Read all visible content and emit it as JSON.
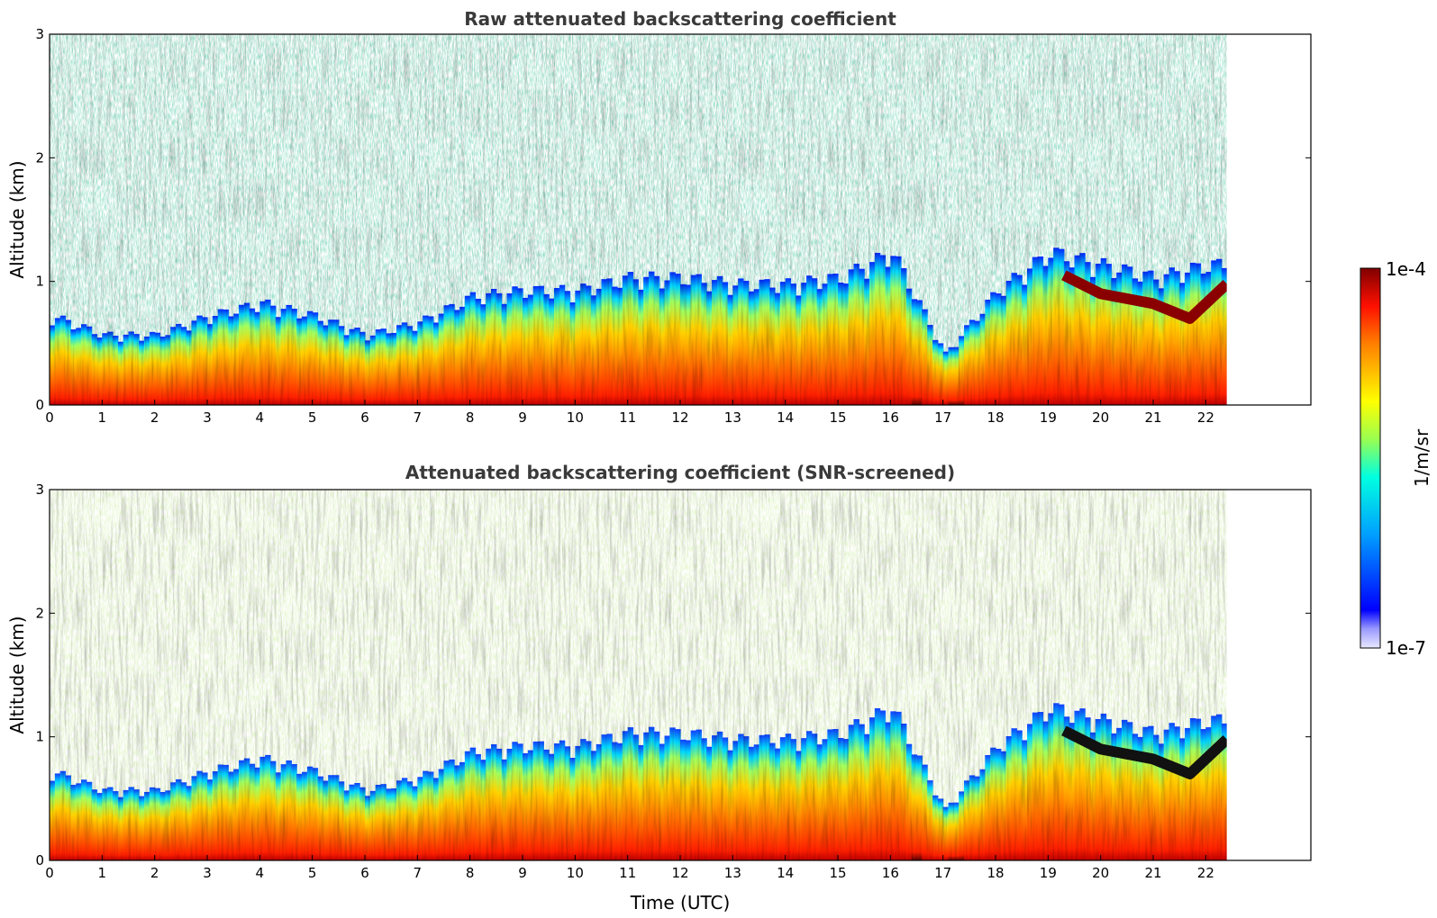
{
  "chart_data": [
    {
      "type": "heatmap",
      "title": "Raw attenuated backscattering coefficient",
      "xlabel": "",
      "ylabel": "Altitude (km)",
      "xlim": [
        0,
        24
      ],
      "ylim": [
        0,
        3
      ],
      "x_ticks": [
        "0",
        "1",
        "2",
        "3",
        "4",
        "5",
        "6",
        "7",
        "8",
        "9",
        "10",
        "11",
        "12",
        "13",
        "14",
        "15",
        "16",
        "17",
        "18",
        "19",
        "20",
        "21",
        "22"
      ],
      "y_ticks": [
        "0",
        "1",
        "2",
        "3"
      ],
      "data_end_time": 22.4,
      "color_scale": "log",
      "aerosol_layer_top_km": [
        {
          "time": 0,
          "top": 0.7
        },
        {
          "time": 1,
          "top": 0.55
        },
        {
          "time": 2,
          "top": 0.55
        },
        {
          "time": 3,
          "top": 0.7
        },
        {
          "time": 4,
          "top": 0.8
        },
        {
          "time": 5,
          "top": 0.7
        },
        {
          "time": 6,
          "top": 0.55
        },
        {
          "time": 7,
          "top": 0.65
        },
        {
          "time": 8,
          "top": 0.85
        },
        {
          "time": 9,
          "top": 0.9
        },
        {
          "time": 10,
          "top": 0.9
        },
        {
          "time": 11,
          "top": 1.0
        },
        {
          "time": 12,
          "top": 1.0
        },
        {
          "time": 13,
          "top": 0.95
        },
        {
          "time": 14,
          "top": 0.95
        },
        {
          "time": 15,
          "top": 1.0
        },
        {
          "time": 16,
          "top": 1.2
        },
        {
          "time": 17,
          "top": 0.4
        },
        {
          "time": 18,
          "top": 0.9
        },
        {
          "time": 19,
          "top": 1.2
        },
        {
          "time": 20,
          "top": 1.1
        },
        {
          "time": 21,
          "top": 1.0
        },
        {
          "time": 22,
          "top": 1.1
        }
      ],
      "cloud_layer_km": [
        {
          "time": 19.3,
          "altitude": 1.05
        },
        {
          "time": 20,
          "altitude": 0.9
        },
        {
          "time": 21,
          "altitude": 0.82
        },
        {
          "time": 21.7,
          "altitude": 0.7
        },
        {
          "time": 22.4,
          "altitude": 0.98
        }
      ]
    },
    {
      "type": "heatmap",
      "title": "Attenuated backscattering coefficient (SNR-screened)",
      "xlabel": "Time (UTC)",
      "ylabel": "Altitude (km)",
      "xlim": [
        0,
        24
      ],
      "ylim": [
        0,
        3
      ],
      "x_ticks": [
        "0",
        "1",
        "2",
        "3",
        "4",
        "5",
        "6",
        "7",
        "8",
        "9",
        "10",
        "11",
        "12",
        "13",
        "14",
        "15",
        "16",
        "17",
        "18",
        "19",
        "20",
        "21",
        "22"
      ],
      "y_ticks": [
        "0",
        "1",
        "2",
        "3"
      ],
      "data_end_time": 22.4,
      "color_scale": "log"
    }
  ],
  "colorbar": {
    "label": "1/m/sr",
    "max_label": "1e-4",
    "min_label": "1e-7",
    "vmin": 1e-07,
    "vmax": 0.0001,
    "colormap": [
      "#00007f",
      "#0000ff",
      "#007fff",
      "#00ffff",
      "#7fff7f",
      "#ffff00",
      "#ff7f00",
      "#ff0000",
      "#7f0000"
    ]
  }
}
